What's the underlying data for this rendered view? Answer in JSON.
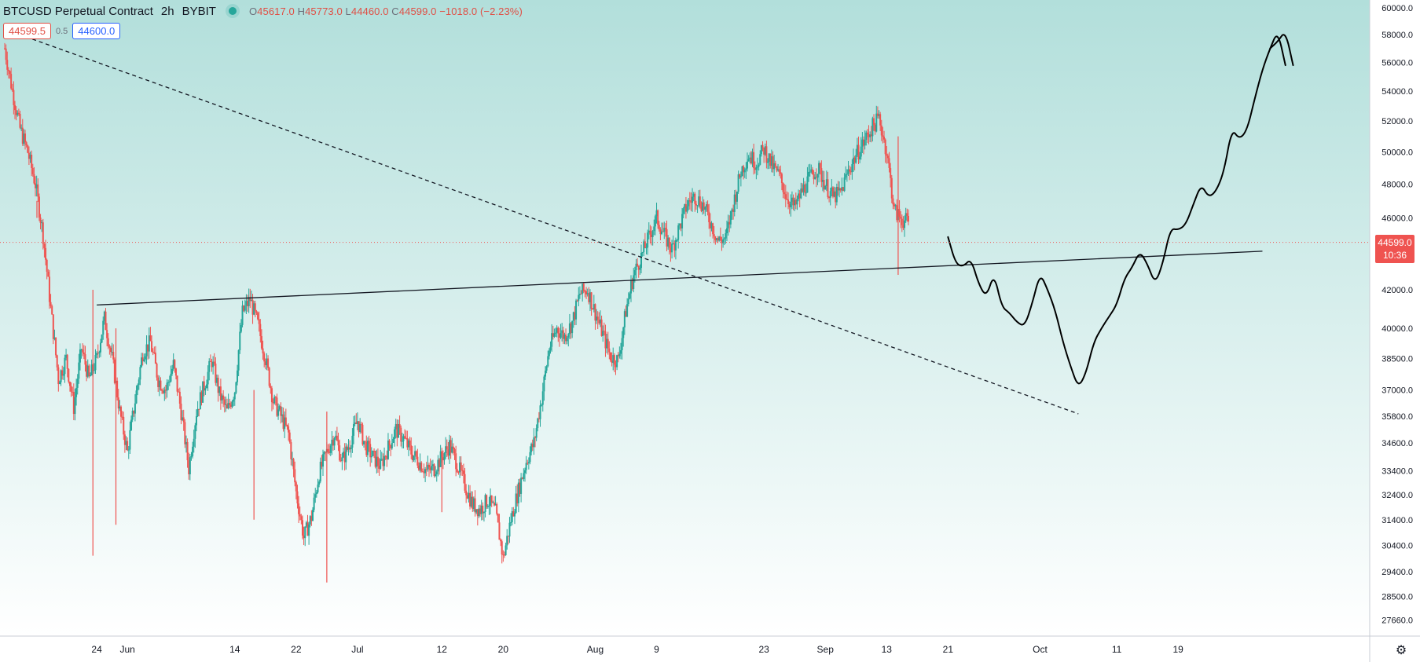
{
  "header": {
    "symbol": "BTCUSD Perpetual Contract",
    "interval": "2h",
    "exchange": "BYBIT",
    "ohlc": {
      "o_label": "O",
      "o": "45617.0",
      "h_label": "H",
      "h": "45773.0",
      "l_label": "L",
      "l": "44460.0",
      "c_label": "C",
      "c": "44599.0",
      "change": "−1018.0 (−2.23%)"
    },
    "status_color": "#26a69a"
  },
  "order": {
    "sell": "44599.5",
    "spread": "0.5",
    "buy": "44600.0"
  },
  "last_price": {
    "price": "44599.0",
    "countdown": "10:36",
    "value": 44599,
    "color": "#ef5350"
  },
  "colors": {
    "up": "#26a69a",
    "down": "#ef5350",
    "bg_top": "#b2dfdb",
    "bg_bottom": "#ffffff"
  },
  "icons": {
    "settings": "gear-icon"
  },
  "chart_data": {
    "type": "candlestick",
    "x_axis": {
      "labels": [
        "24",
        "Jun",
        "14",
        "22",
        "Jul",
        "12",
        "20",
        "Aug",
        "9",
        "23",
        "Sep",
        "13",
        "21",
        "Oct",
        "11",
        "19"
      ],
      "positions": [
        12,
        16,
        30,
        38,
        46,
        57,
        65,
        77,
        85,
        99,
        107,
        115,
        123,
        135,
        145,
        153
      ]
    },
    "y_axis": {
      "scale": "log",
      "ticks": [
        "60000.0",
        "58000.0",
        "56000.0",
        "54000.0",
        "52000.0",
        "50000.0",
        "48000.0",
        "46000.0",
        "42000.0",
        "40000.0",
        "38500.0",
        "37000.0",
        "35800.0",
        "34600.0",
        "33400.0",
        "32400.0",
        "31400.0",
        "30400.0",
        "29400.0",
        "28500.0",
        "27660.0"
      ],
      "range": [
        27100,
        60600
      ]
    },
    "x_range": [
      0,
      166
    ],
    "price_path": [
      [
        0,
        57000
      ],
      [
        1,
        54000
      ],
      [
        2,
        51500
      ],
      [
        3,
        50000
      ],
      [
        4,
        48000
      ],
      [
        5,
        45000
      ],
      [
        6,
        41000
      ],
      [
        7,
        37500
      ],
      [
        8,
        38500
      ],
      [
        9,
        36200
      ],
      [
        10,
        39000
      ],
      [
        11,
        37500
      ],
      [
        12,
        38500
      ],
      [
        13,
        40500
      ],
      [
        14,
        38500
      ],
      [
        15,
        36000
      ],
      [
        16,
        34200
      ],
      [
        17,
        36500
      ],
      [
        18,
        38800
      ],
      [
        19,
        39300
      ],
      [
        20,
        37500
      ],
      [
        21,
        37000
      ],
      [
        22,
        38200
      ],
      [
        23,
        36000
      ],
      [
        24,
        33500
      ],
      [
        25,
        36000
      ],
      [
        26,
        37200
      ],
      [
        27,
        38400
      ],
      [
        28,
        36800
      ],
      [
        29,
        36000
      ],
      [
        30,
        37000
      ],
      [
        31,
        40800
      ],
      [
        32,
        41500
      ],
      [
        33,
        40200
      ],
      [
        34,
        38500
      ],
      [
        35,
        36500
      ],
      [
        36,
        35800
      ],
      [
        37,
        35000
      ],
      [
        38,
        32500
      ],
      [
        39,
        30700
      ],
      [
        40,
        31500
      ],
      [
        41,
        33300
      ],
      [
        42,
        34200
      ],
      [
        43,
        35000
      ],
      [
        44,
        33800
      ],
      [
        45,
        34600
      ],
      [
        46,
        35600
      ],
      [
        47,
        34500
      ],
      [
        48,
        34000
      ],
      [
        49,
        33600
      ],
      [
        50,
        34400
      ],
      [
        51,
        35200
      ],
      [
        52,
        34800
      ],
      [
        53,
        34200
      ],
      [
        54,
        33800
      ],
      [
        55,
        33400
      ],
      [
        56,
        33500
      ],
      [
        57,
        34000
      ],
      [
        58,
        34500
      ],
      [
        59,
        33700
      ],
      [
        60,
        32800
      ],
      [
        61,
        32000
      ],
      [
        62,
        31800
      ],
      [
        63,
        32200
      ],
      [
        64,
        31700
      ],
      [
        65,
        29900
      ],
      [
        66,
        31400
      ],
      [
        67,
        32600
      ],
      [
        68,
        33800
      ],
      [
        69,
        34600
      ],
      [
        70,
        36600
      ],
      [
        71,
        39000
      ],
      [
        72,
        40000
      ],
      [
        73,
        39600
      ],
      [
        74,
        40300
      ],
      [
        75,
        41800
      ],
      [
        76,
        42000
      ],
      [
        77,
        40800
      ],
      [
        78,
        39700
      ],
      [
        79,
        38600
      ],
      [
        80,
        38400
      ],
      [
        81,
        40900
      ],
      [
        82,
        42800
      ],
      [
        83,
        43800
      ],
      [
        84,
        44900
      ],
      [
        85,
        46000
      ],
      [
        86,
        45000
      ],
      [
        87,
        44200
      ],
      [
        88,
        45500
      ],
      [
        89,
        46800
      ],
      [
        90,
        47300
      ],
      [
        91,
        46800
      ],
      [
        92,
        45800
      ],
      [
        93,
        44700
      ],
      [
        94,
        44800
      ],
      [
        95,
        46800
      ],
      [
        96,
        48800
      ],
      [
        97,
        49800
      ],
      [
        98,
        49300
      ],
      [
        99,
        50200
      ],
      [
        100,
        49200
      ],
      [
        101,
        48500
      ],
      [
        102,
        47200
      ],
      [
        103,
        46600
      ],
      [
        104,
        47600
      ],
      [
        105,
        48400
      ],
      [
        106,
        49000
      ],
      [
        107,
        48000
      ],
      [
        108,
        47200
      ],
      [
        109,
        47500
      ],
      [
        110,
        48800
      ],
      [
        111,
        49800
      ],
      [
        112,
        50600
      ],
      [
        113,
        51500
      ],
      [
        114,
        52200
      ],
      [
        115,
        50000
      ],
      [
        116,
        46400
      ],
      [
        117,
        45900
      ],
      [
        118,
        45700
      ]
    ],
    "drawings": [
      {
        "kind": "trendline-dashed",
        "from": [
          1,
          58200
        ],
        "to": [
          140,
          35900
        ]
      },
      {
        "kind": "trendline-solid",
        "from": [
          12,
          41200
        ],
        "to": [
          164,
          44100
        ]
      },
      {
        "kind": "projection",
        "points": [
          [
            123,
            44900
          ],
          [
            124,
            43400
          ],
          [
            125,
            43250
          ],
          [
            126,
            43700
          ],
          [
            127,
            42300
          ],
          [
            128,
            41600
          ],
          [
            129,
            42900
          ],
          [
            130,
            41100
          ],
          [
            131,
            40800
          ],
          [
            132,
            40300
          ],
          [
            133,
            40100
          ],
          [
            134,
            41300
          ],
          [
            135,
            42900
          ],
          [
            136,
            42000
          ],
          [
            137,
            40900
          ],
          [
            138,
            39300
          ],
          [
            139,
            38100
          ],
          [
            140,
            37100
          ],
          [
            141,
            37800
          ],
          [
            142,
            39300
          ],
          [
            143,
            40000
          ],
          [
            144,
            40600
          ],
          [
            145,
            41200
          ],
          [
            146,
            42600
          ],
          [
            147,
            43200
          ],
          [
            148,
            44100
          ],
          [
            149,
            43400
          ],
          [
            150,
            42300
          ],
          [
            151,
            43400
          ],
          [
            152,
            45400
          ],
          [
            153,
            45300
          ],
          [
            154,
            45600
          ],
          [
            155,
            46800
          ],
          [
            156,
            48000
          ],
          [
            157,
            47200
          ],
          [
            158,
            47600
          ],
          [
            159,
            48800
          ],
          [
            160,
            51500
          ],
          [
            161,
            50800
          ],
          [
            162,
            51400
          ],
          [
            163,
            53500
          ],
          [
            164,
            55500
          ],
          [
            165,
            57000
          ],
          [
            166,
            58300
          ],
          [
            167,
            55800
          ]
        ]
      },
      {
        "kind": "projection-hook",
        "points": [
          [
            165,
            57000
          ],
          [
            166,
            57500
          ],
          [
            167,
            58300
          ],
          [
            168,
            55800
          ]
        ]
      }
    ]
  }
}
